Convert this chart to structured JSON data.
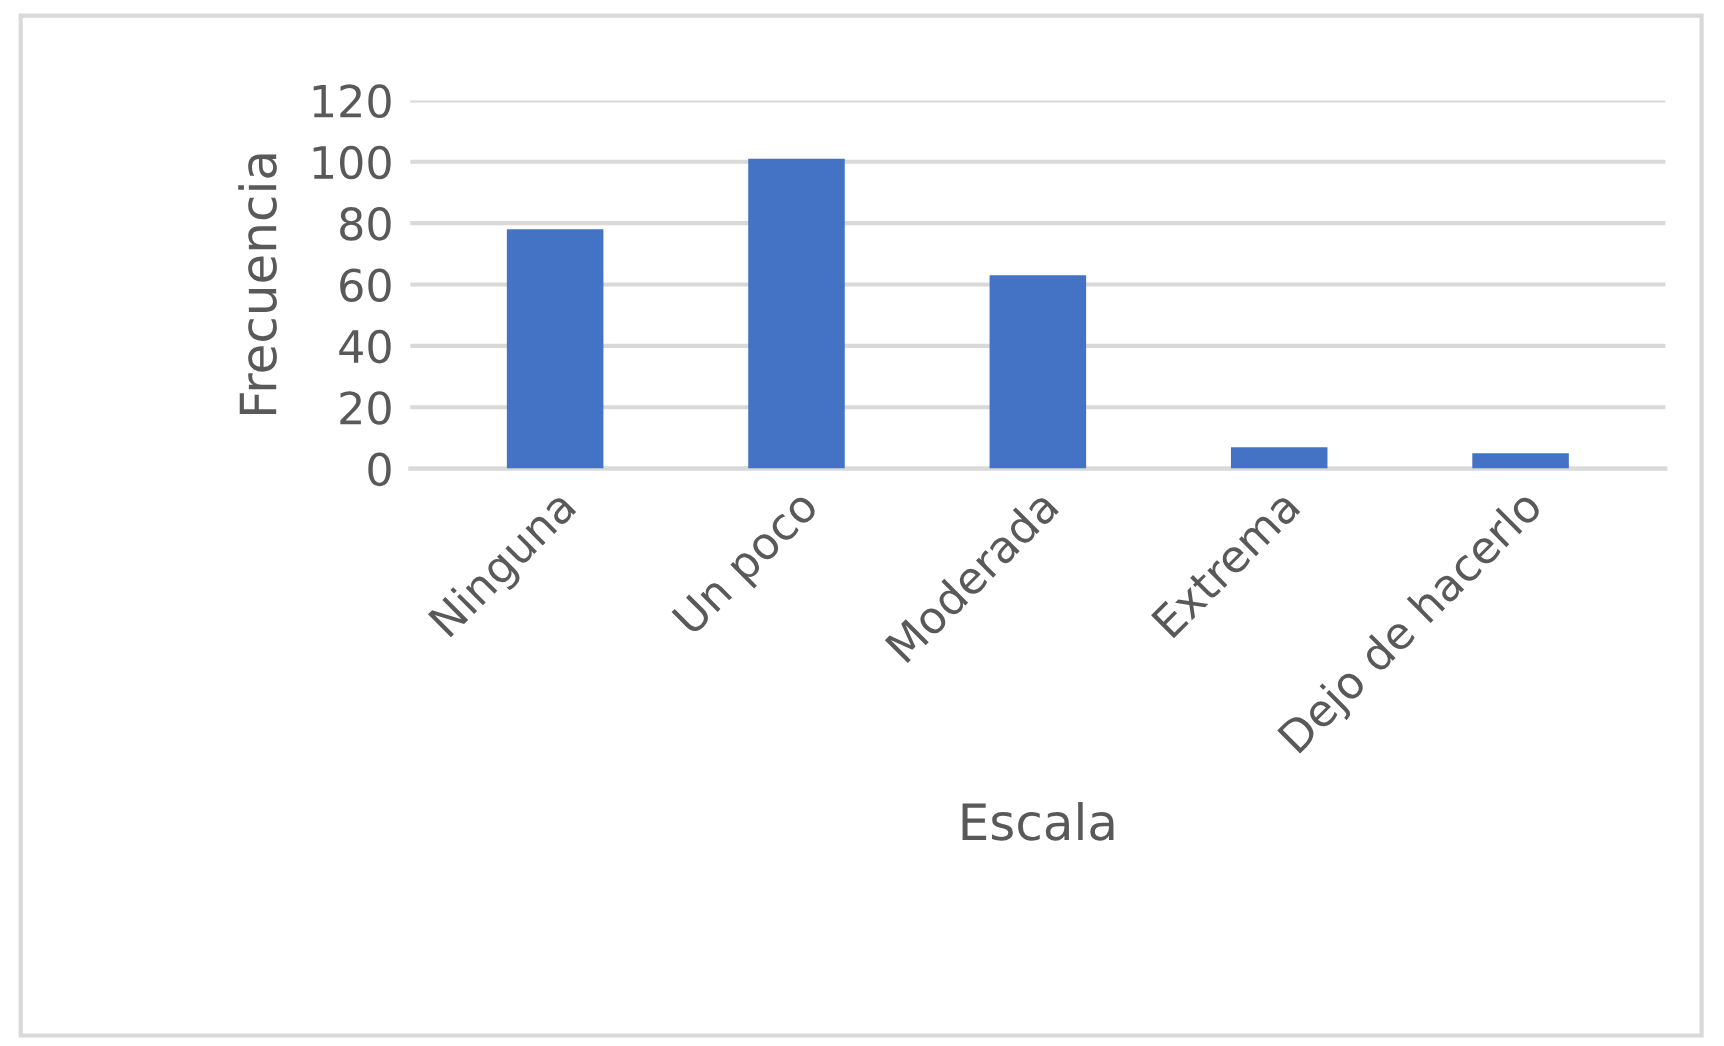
{
  "chart_data": {
    "type": "bar",
    "xlabel": "Escala",
    "ylabel": "Frecuencia",
    "categories": [
      "Ninguna",
      "Un poco",
      "Moderada",
      "Extrema",
      "Dejo de hacerlo"
    ],
    "values": [
      78,
      101,
      63,
      7,
      5
    ],
    "color": "#4472c4",
    "ylim": [
      0,
      120
    ],
    "yticks": [
      0,
      20,
      40,
      60,
      80,
      100,
      120
    ],
    "grid": "y"
  }
}
